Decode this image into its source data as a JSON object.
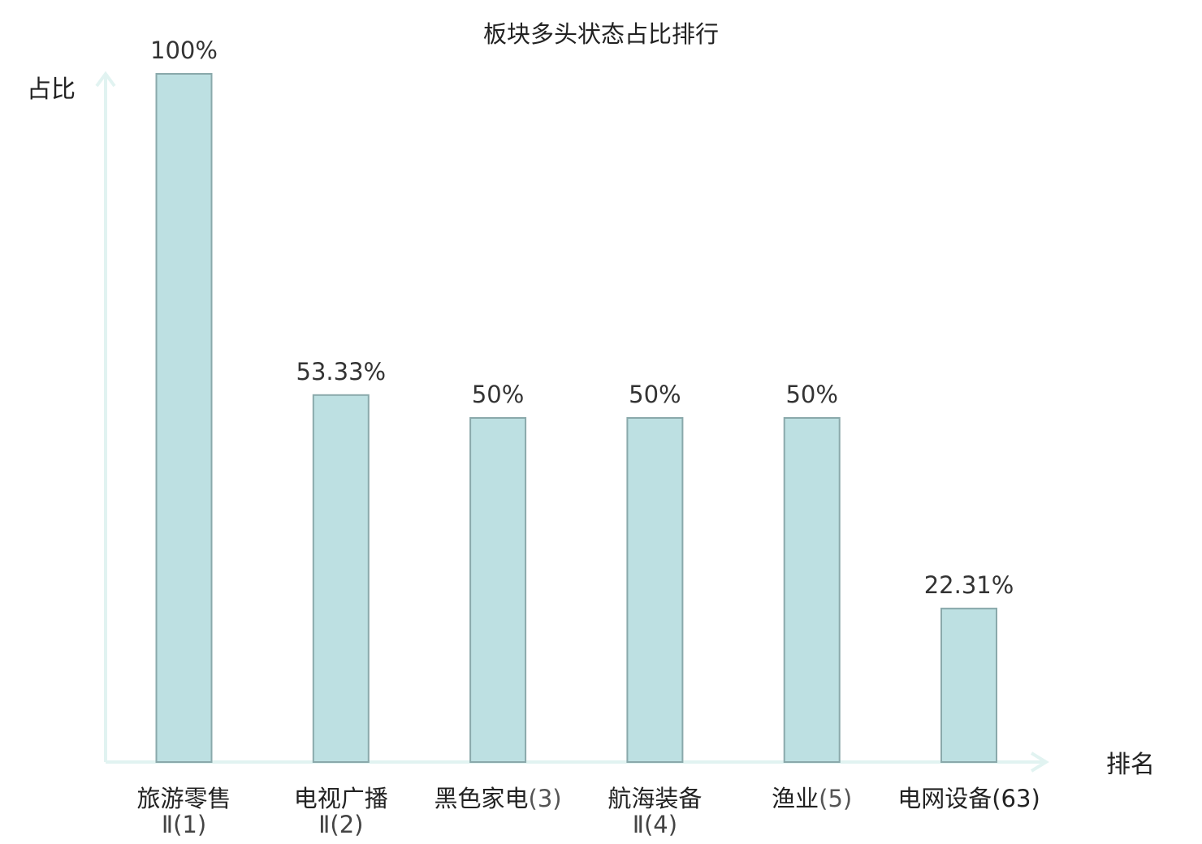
{
  "colors": {
    "bar_fill": "#bde0e2",
    "bar_stroke": "#8aa9ab",
    "axis": "#e1f3f1",
    "text": "#222222",
    "highlight": "#e8262b"
  },
  "chart_data": {
    "type": "bar",
    "title": "板块多头状态占比排行",
    "ylabel": "占比",
    "xlabel": "排名",
    "ylim": [
      0,
      100
    ],
    "grid": false,
    "categories": [
      {
        "name_line1": "旅游零售",
        "name_line2": "Ⅱ",
        "rank": "(1)",
        "highlight": false
      },
      {
        "name_line1": "电视广播",
        "name_line2": "Ⅱ",
        "rank": "(2)",
        "highlight": false
      },
      {
        "name_line1": "黑色家电",
        "name_line2": "",
        "rank": "(3)",
        "highlight": false
      },
      {
        "name_line1": "航海装备",
        "name_line2": "Ⅱ",
        "rank": "(4)",
        "highlight": false
      },
      {
        "name_line1": "渔业",
        "name_line2": "",
        "rank": "(5)",
        "highlight": false
      },
      {
        "name_line1": "电网设备",
        "name_line2": "",
        "rank": "(63)",
        "highlight": true
      }
    ],
    "values": [
      100,
      53.33,
      50,
      50,
      50,
      22.31
    ],
    "value_labels": [
      "100%",
      "53.33%",
      "50%",
      "50%",
      "50%",
      "22.31%"
    ]
  }
}
